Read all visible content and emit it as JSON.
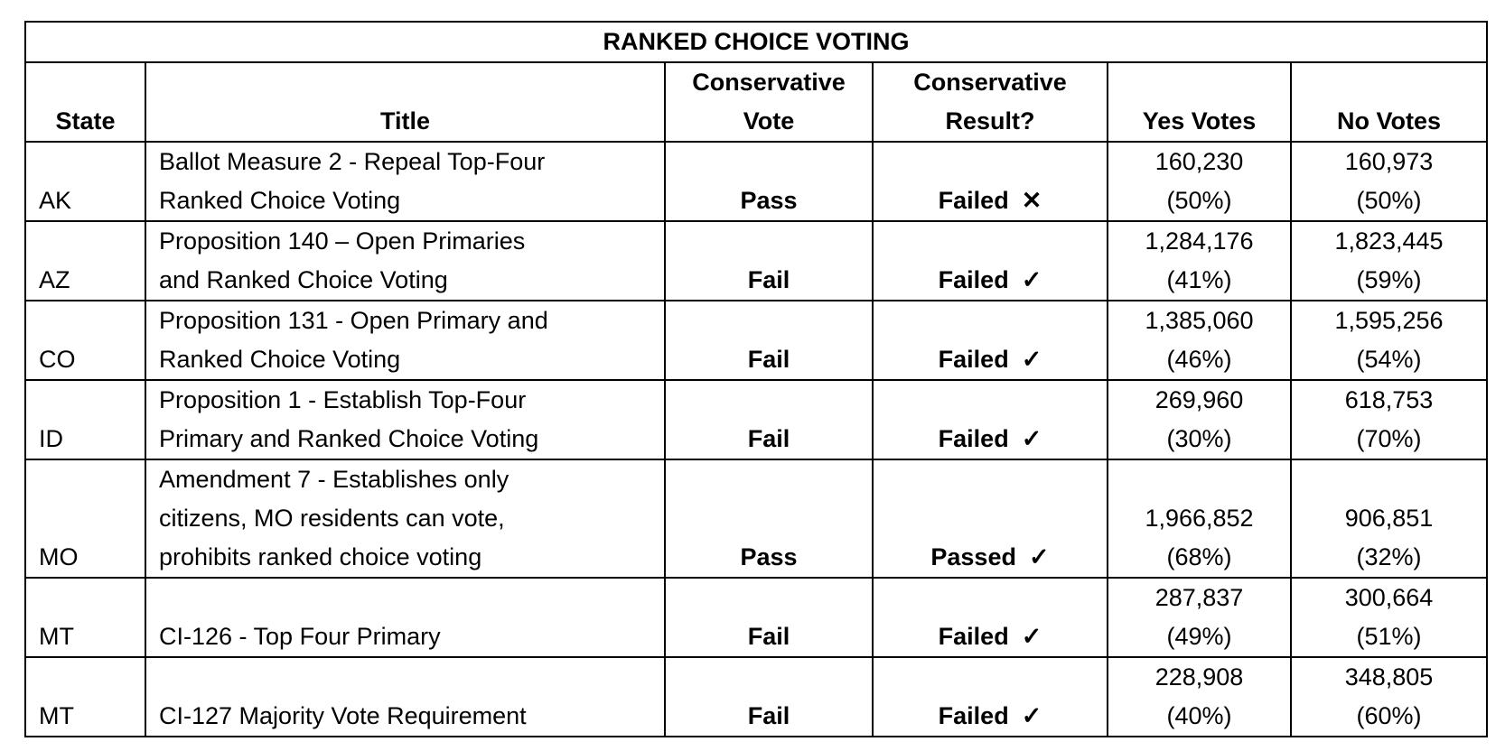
{
  "table": {
    "title": "RANKED CHOICE VOTING",
    "headers": {
      "state": "State",
      "title": "Title",
      "vote_1": "Conservative",
      "vote_2": "Vote",
      "result_1": "Conservative",
      "result_2": "Result?",
      "yes": "Yes Votes",
      "no": "No Votes"
    },
    "rows": [
      {
        "state": "AK",
        "title": [
          "Ballot Measure 2 - Repeal Top-Four",
          "Ranked Choice Voting"
        ],
        "vote": "Pass",
        "result": "Failed",
        "mark": "✕",
        "mark_icon": "x-icon",
        "yes": "160,230",
        "yes_pct": "(50%)",
        "no": "160,973",
        "no_pct": "(50%)"
      },
      {
        "state": "AZ",
        "title": [
          "Proposition 140 – Open Primaries",
          "and Ranked Choice Voting"
        ],
        "vote": "Fail",
        "result": "Failed",
        "mark": "✓",
        "mark_icon": "check-icon",
        "yes": "1,284,176",
        "yes_pct": "(41%)",
        "no": "1,823,445",
        "no_pct": "(59%)"
      },
      {
        "state": "CO",
        "title": [
          "Proposition 131 - Open Primary and",
          "Ranked Choice Voting"
        ],
        "vote": "Fail",
        "result": "Failed",
        "mark": "✓",
        "mark_icon": "check-icon",
        "yes": "1,385,060",
        "yes_pct": "(46%)",
        "no": "1,595,256",
        "no_pct": "(54%)"
      },
      {
        "state": "ID",
        "title": [
          "Proposition 1 - Establish Top-Four",
          "Primary and Ranked Choice Voting"
        ],
        "vote": "Fail",
        "result": "Failed",
        "mark": "✓",
        "mark_icon": "check-icon",
        "yes": "269,960",
        "yes_pct": "(30%)",
        "no": "618,753",
        "no_pct": "(70%)"
      },
      {
        "state": "MO",
        "title": [
          "Amendment 7 - Establishes only",
          "citizens, MO residents can vote,",
          "prohibits ranked choice voting"
        ],
        "vote": "Pass",
        "result": "Passed",
        "mark": "✓",
        "mark_icon": "check-icon",
        "yes": "1,966,852",
        "yes_pct": "(68%)",
        "no": "906,851",
        "no_pct": "(32%)"
      },
      {
        "state": "MT",
        "title": [
          "CI-126  - Top Four Primary"
        ],
        "vote": "Fail",
        "result": "Failed",
        "mark": "✓",
        "mark_icon": "check-icon",
        "yes": "287,837",
        "yes_pct": "(49%)",
        "no": "300,664",
        "no_pct": "(51%)"
      },
      {
        "state": "MT",
        "title": [
          "CI-127 Majority Vote Requirement"
        ],
        "vote": "Fail",
        "result": "Failed",
        "mark": "✓",
        "mark_icon": "check-icon",
        "yes": "228,908",
        "yes_pct": "(40%)",
        "no": "348,805",
        "no_pct": "(60%)"
      }
    ]
  }
}
